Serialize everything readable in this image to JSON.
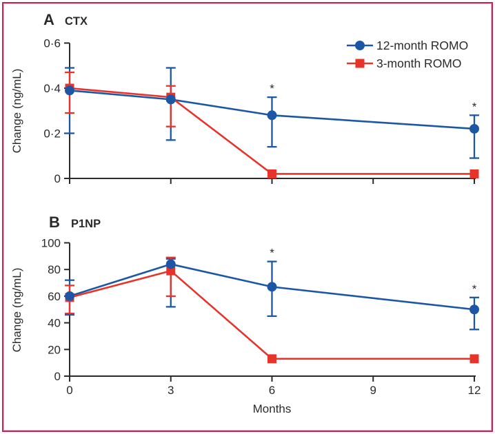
{
  "figure": {
    "background": "#ffffff",
    "border_color": "#b9295b",
    "text_color": "#2b2a29",
    "accent_blue": "#1c57a5",
    "accent_red": "#e8332a"
  },
  "legend": {
    "position": "top-right",
    "entries": [
      {
        "label": "12-month ROMO",
        "color": "#1c57a5",
        "marker": "circle"
      },
      {
        "label": "3-month ROMO",
        "color": "#e8332a",
        "marker": "square"
      }
    ]
  },
  "chart_data": [
    {
      "id": "ctx",
      "type": "line",
      "panel_label": "A",
      "title": "CTX",
      "xlabel": "",
      "ylabel": "Change (ng/mL)",
      "xlim": [
        0,
        12
      ],
      "ylim": [
        0,
        0.6
      ],
      "xticks": [
        0,
        3,
        6,
        9,
        12
      ],
      "xtick_labels": [
        "",
        "",
        "",
        "",
        ""
      ],
      "show_xtick_labels": false,
      "yticks": [
        0,
        0.2,
        0.4,
        0.6
      ],
      "ytick_labels": [
        "0",
        "0·2",
        "0·4",
        "0·6"
      ],
      "grid": false,
      "has_legend": true,
      "series": [
        {
          "name": "12-month ROMO",
          "color": "#1c57a5",
          "marker": "circle",
          "points": [
            {
              "x": 0,
              "y": 0.39,
              "lo": 0.2,
              "hi": 0.49
            },
            {
              "x": 3,
              "y": 0.35,
              "lo": 0.17,
              "hi": 0.49
            },
            {
              "x": 6,
              "y": 0.28,
              "lo": 0.14,
              "hi": 0.36,
              "star": true
            },
            {
              "x": 12,
              "y": 0.22,
              "lo": 0.09,
              "hi": 0.28,
              "star": true
            }
          ]
        },
        {
          "name": "3-month ROMO",
          "color": "#e8332a",
          "marker": "square",
          "points": [
            {
              "x": 0,
              "y": 0.4,
              "lo": 0.29,
              "hi": 0.47
            },
            {
              "x": 3,
              "y": 0.36,
              "lo": 0.23,
              "hi": 0.41
            },
            {
              "x": 6,
              "y": 0.02
            },
            {
              "x": 12,
              "y": 0.02
            }
          ]
        }
      ]
    },
    {
      "id": "p1np",
      "type": "line",
      "panel_label": "B",
      "title": "P1NP",
      "xlabel": "Months",
      "ylabel": "Change (ng/mL)",
      "xlim": [
        0,
        12
      ],
      "ylim": [
        0,
        100
      ],
      "xticks": [
        0,
        3,
        6,
        9,
        12
      ],
      "xtick_labels": [
        "0",
        "3",
        "6",
        "9",
        "12"
      ],
      "show_xtick_labels": true,
      "yticks": [
        0,
        20,
        40,
        60,
        80,
        100
      ],
      "ytick_labels": [
        "0",
        "20",
        "40",
        "60",
        "80",
        "100"
      ],
      "grid": false,
      "has_legend": false,
      "series": [
        {
          "name": "12-month ROMO",
          "color": "#1c57a5",
          "marker": "circle",
          "points": [
            {
              "x": 0,
              "y": 60,
              "lo": 46,
              "hi": 72
            },
            {
              "x": 3,
              "y": 84,
              "lo": 52,
              "hi": 88
            },
            {
              "x": 6,
              "y": 67,
              "lo": 45,
              "hi": 86,
              "star": true
            },
            {
              "x": 12,
              "y": 50,
              "lo": 35,
              "hi": 59,
              "star": true
            }
          ]
        },
        {
          "name": "3-month ROMO",
          "color": "#e8332a",
          "marker": "square",
          "points": [
            {
              "x": 0,
              "y": 59,
              "lo": 47,
              "hi": 68
            },
            {
              "x": 3,
              "y": 79,
              "lo": 60,
              "hi": 89
            },
            {
              "x": 6,
              "y": 13
            },
            {
              "x": 12,
              "y": 13
            }
          ]
        }
      ]
    }
  ]
}
